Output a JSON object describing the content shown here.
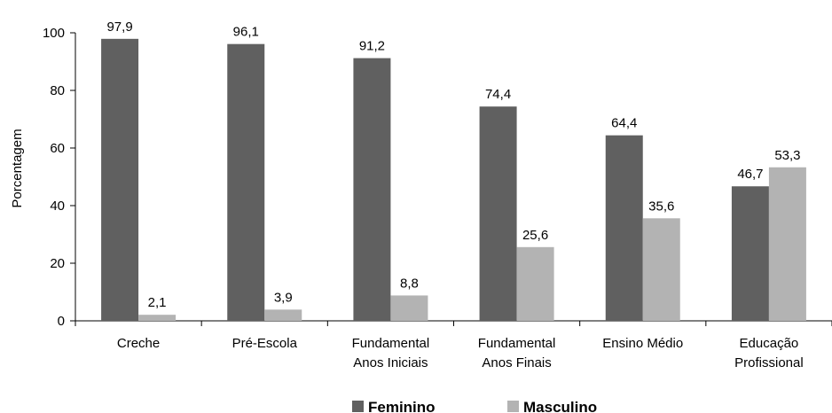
{
  "chart_data": {
    "type": "bar",
    "title": "",
    "xlabel": "",
    "ylabel": "Porcentagem",
    "ylim": [
      0,
      100
    ],
    "yticks": [
      0,
      20,
      40,
      60,
      80,
      100
    ],
    "grid": false,
    "legend_position": "bottom",
    "categories": [
      [
        "Creche"
      ],
      [
        "Pré-Escola"
      ],
      [
        "Fundamental",
        "Anos Iniciais"
      ],
      [
        "Fundamental",
        "Anos Finais"
      ],
      [
        "Ensino Médio"
      ],
      [
        "Educação",
        "Profissional"
      ]
    ],
    "series": [
      {
        "name": "Feminino",
        "color": "#606060",
        "values": [
          97.9,
          96.1,
          91.2,
          74.4,
          64.4,
          46.7
        ],
        "labels": [
          "97,9",
          "96,1",
          "91,2",
          "74,4",
          "64,4",
          "46,7"
        ]
      },
      {
        "name": "Masculino",
        "color": "#b3b3b3",
        "values": [
          2.1,
          3.9,
          8.8,
          25.6,
          35.6,
          53.3
        ],
        "labels": [
          "2,1",
          "3,9",
          "8,8",
          "25,6",
          "35,6",
          "53,3"
        ]
      }
    ]
  }
}
